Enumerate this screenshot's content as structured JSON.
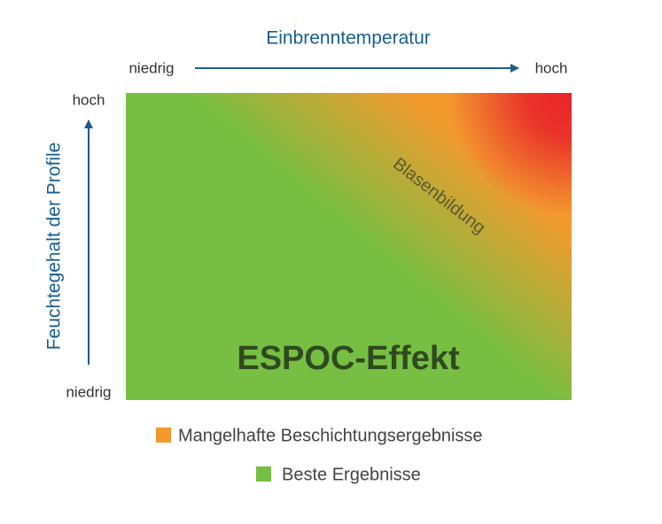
{
  "header": {
    "title": "Einbrenntemperatur"
  },
  "x_axis": {
    "low": "niedrig",
    "high": "hoch"
  },
  "y_axis": {
    "title": "Feuchtegehalt der Profile",
    "low": "niedrig",
    "high": "hoch"
  },
  "zones": {
    "bubbles": "Blasenbildung",
    "effect": "ESPOC-Effekt"
  },
  "legend": [
    {
      "label": "Mangelhafte Beschichtungsergebnisse",
      "color": "#f39a2e"
    },
    {
      "label": "Beste Ergebnisse",
      "color": "#76bf43"
    }
  ]
}
